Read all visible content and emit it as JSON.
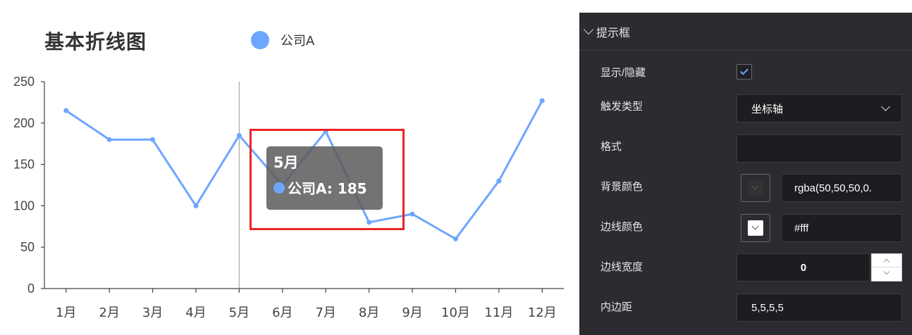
{
  "chart_data": {
    "type": "line",
    "title": "基本折线图",
    "categories": [
      "1月",
      "2月",
      "3月",
      "4月",
      "5月",
      "6月",
      "7月",
      "8月",
      "9月",
      "10月",
      "11月",
      "12月"
    ],
    "series": [
      {
        "name": "公司A",
        "values": [
          215,
          180,
          180,
          100,
          185,
          125,
          190,
          80,
          90,
          60,
          130,
          227
        ]
      }
    ],
    "ylim": [
      0,
      250
    ],
    "yticks": [
      "0",
      "50",
      "100",
      "150",
      "200",
      "250"
    ],
    "grid": false,
    "legend": "top",
    "color": "#6ea6ff",
    "axis_pointer_category": "5月",
    "tooltip": {
      "title": "5月",
      "text": "公司A: 185"
    }
  },
  "panel": {
    "section_title": "提示框",
    "rows": {
      "show_hide": "显示/隐藏",
      "trigger_type": "触发类型",
      "format": "格式",
      "bg_color": "背景颜色",
      "border_color": "边线颜色",
      "border_width": "边线宽度",
      "padding": "内边距"
    },
    "values": {
      "show_checked": true,
      "trigger_type": "坐标轴",
      "format": "",
      "bg_color": "rgba(50,50,50,0.",
      "border_color": "#fff",
      "border_width": "0",
      "padding": "5,5,5,5"
    },
    "colors": {
      "bg_swatch": "#323232",
      "border_swatch": "#ffffff",
      "accent": "#6ea6ff"
    },
    "icons": [
      "chevron-down-icon",
      "check-icon",
      "chevron-up-icon"
    ]
  }
}
